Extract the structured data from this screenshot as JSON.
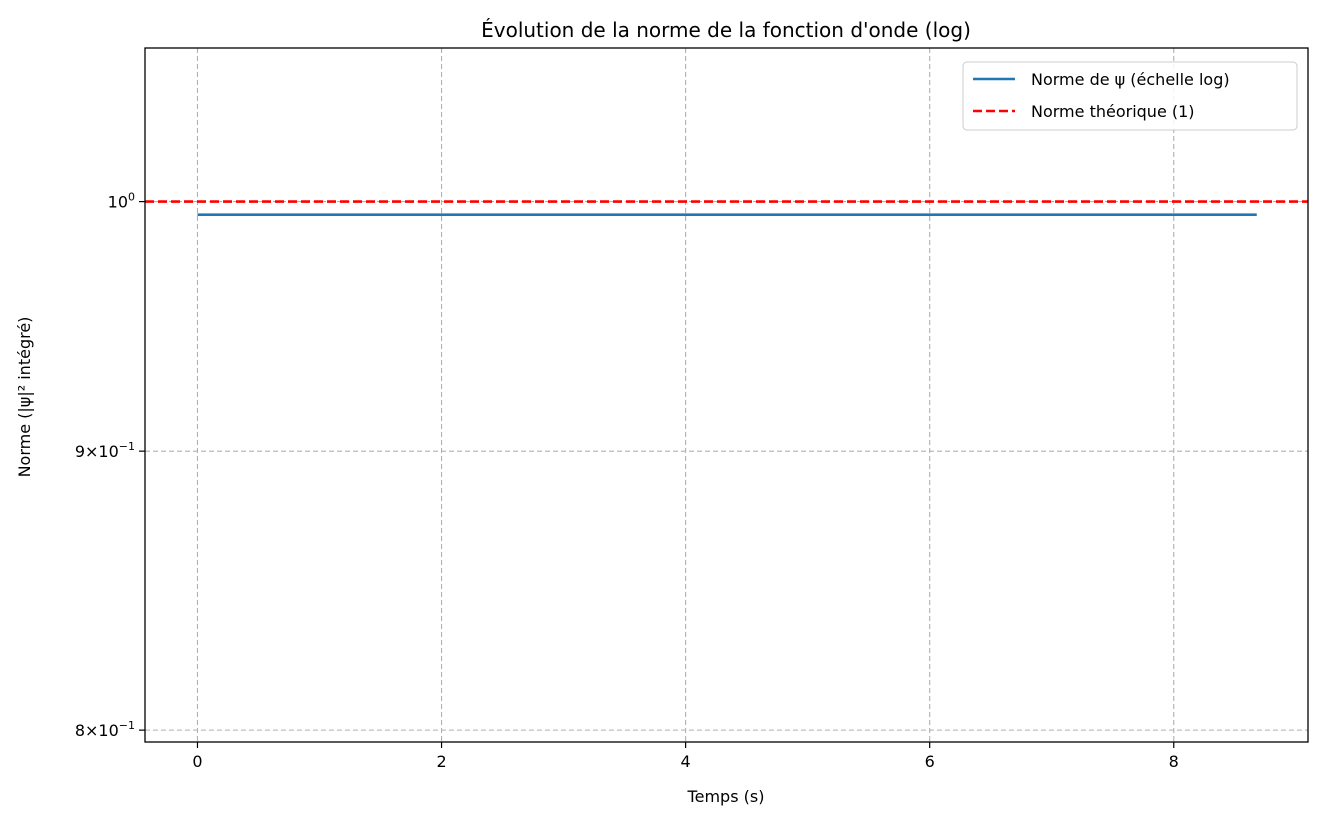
{
  "chart_data": {
    "type": "line",
    "title": "Évolution de la norme de la fonction d'onde (log)",
    "xlabel": "Temps (s)",
    "ylabel": "Norme (|ψ|² intégré)",
    "yscale": "log",
    "xlim": [
      -0.43,
      9.1
    ],
    "ylim": [
      0.796,
      1.067
    ],
    "x_ticks": [
      {
        "value": 0,
        "label": "0"
      },
      {
        "value": 2,
        "label": "2"
      },
      {
        "value": 4,
        "label": "4"
      },
      {
        "value": 6,
        "label": "6"
      },
      {
        "value": 8,
        "label": "8"
      }
    ],
    "y_ticks": [
      {
        "value": 1.0,
        "mantissa": "",
        "base": "10",
        "exp": "0"
      },
      {
        "value": 0.9,
        "mantissa": "9",
        "base": "10",
        "exp": "−1"
      },
      {
        "value": 0.8,
        "mantissa": "8",
        "base": "10",
        "exp": "−1"
      }
    ],
    "grid": true,
    "legend_position": "top-right",
    "series": [
      {
        "name": "Norme de ψ (échelle log)",
        "color": "#1f77b4",
        "style": "solid",
        "x": [
          0,
          8.68
        ],
        "y": [
          0.9945,
          0.9945
        ]
      },
      {
        "name": "Norme théorique (1)",
        "color": "#ff0000",
        "style": "dashed",
        "hline": 1.0
      }
    ]
  }
}
